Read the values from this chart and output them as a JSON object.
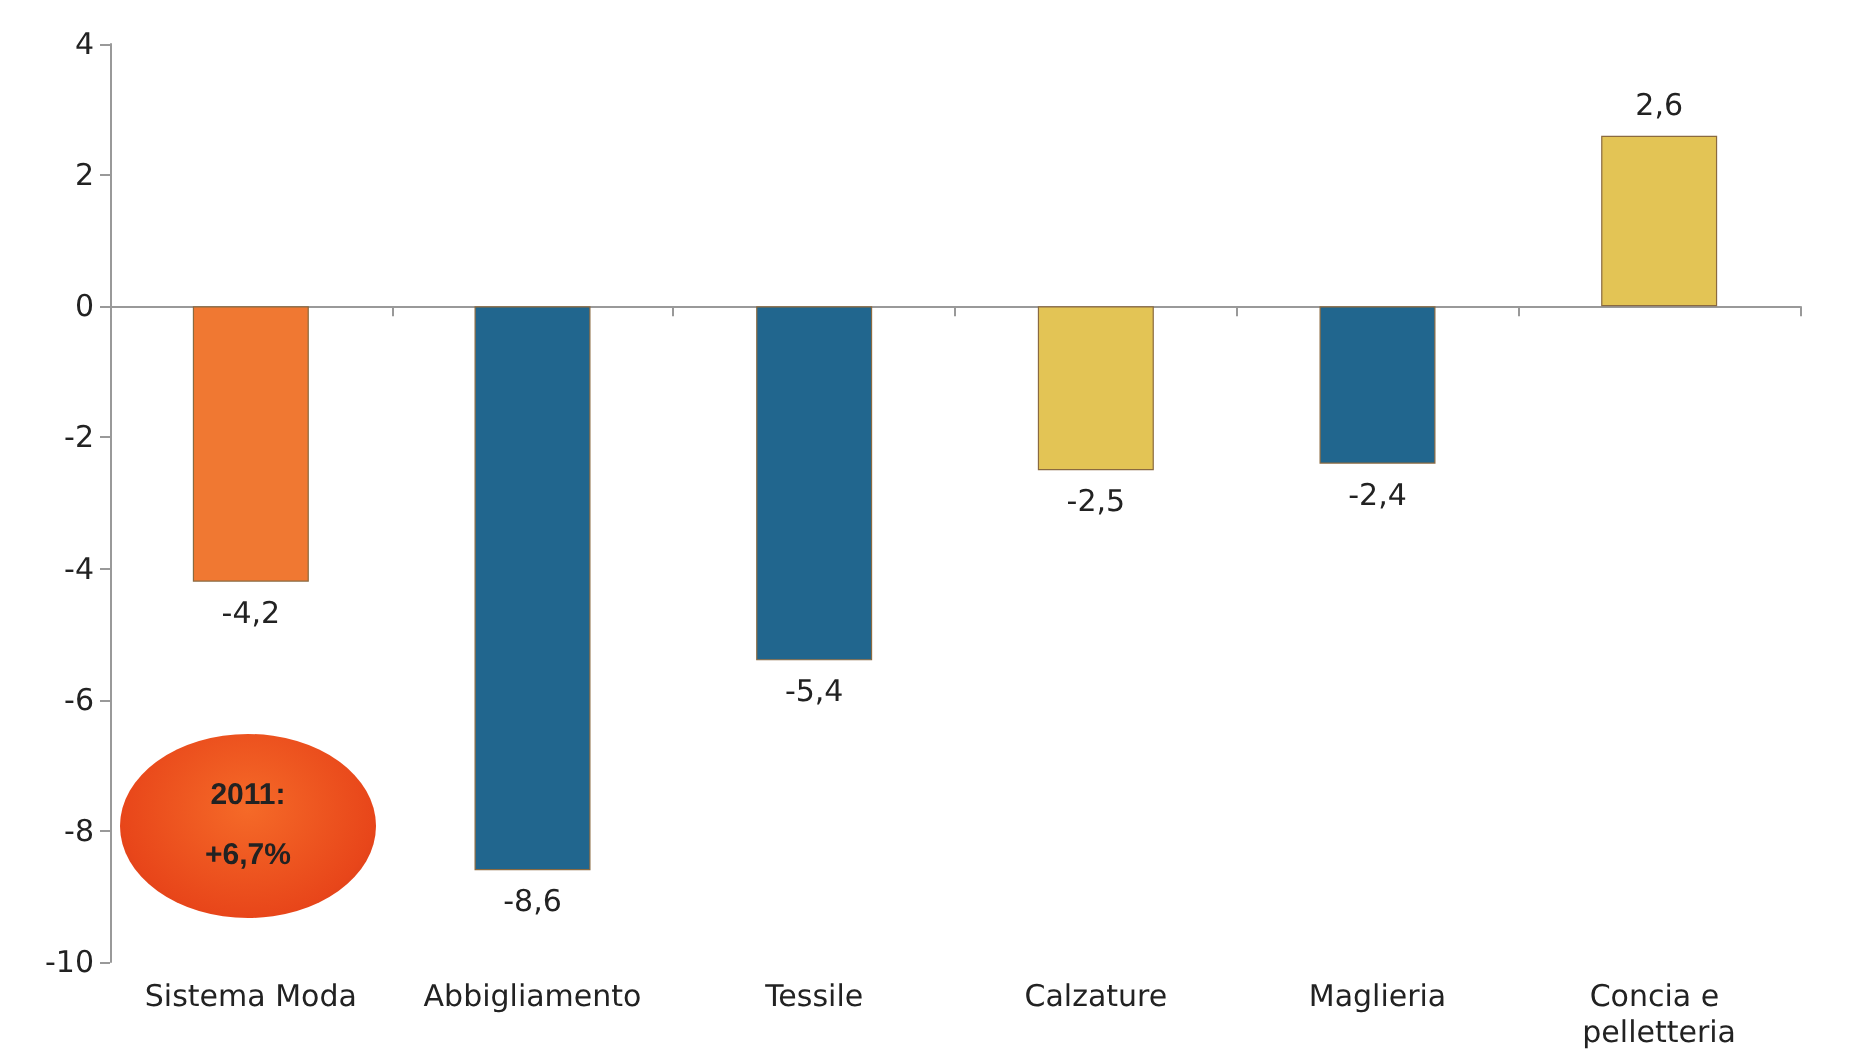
{
  "chart_data": {
    "type": "bar",
    "categories": [
      "Sistema Moda",
      "Abbigliamento",
      "Tessile",
      "Calzature",
      "Maglieria",
      "Concia e pelletteria"
    ],
    "values": [
      -4.2,
      -8.6,
      -5.4,
      -2.5,
      -2.4,
      2.6
    ],
    "value_labels": [
      "-4,2",
      "-8,6",
      "-5,4",
      "-2,5",
      "-2,4",
      "2,6"
    ],
    "colors": [
      "#f07832",
      "#21668e",
      "#21668e",
      "#e3c455",
      "#21668e",
      "#e3c455"
    ],
    "ylim": [
      -10,
      4
    ],
    "yticks": [
      -10,
      -8,
      -6,
      -4,
      -2,
      0,
      2,
      4
    ],
    "annotations": [
      "2011: +6,7%"
    ]
  }
}
